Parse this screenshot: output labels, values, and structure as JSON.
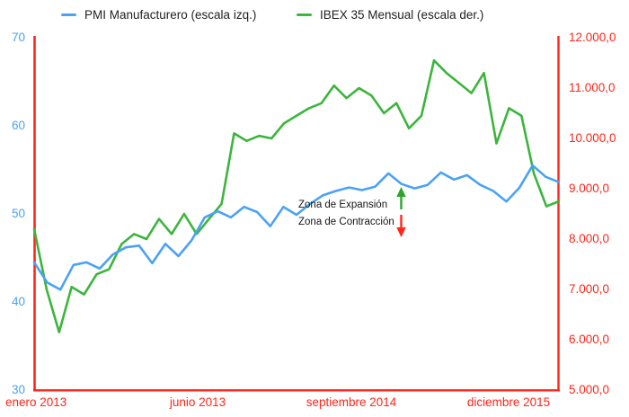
{
  "legend": {
    "items": [
      {
        "label": "PMI Manufacturero (escala izq.)",
        "color": "#4aa2f5"
      },
      {
        "label": "IBEX 35 Mensual (escala der.)",
        "color": "#3cb53c"
      }
    ]
  },
  "axes": {
    "left": {
      "ticks": [
        "70",
        "60",
        "50",
        "40",
        "30"
      ],
      "color": "#4aa2f5"
    },
    "right": {
      "ticks": [
        "12.000,0",
        "11.000,0",
        "10.000,0",
        "9.000,0",
        "8.000,0",
        "7.000,0",
        "6.000,0",
        "5.000,0"
      ],
      "color": "#ff2619"
    },
    "bottom": {
      "ticks": [
        "enero 2013",
        "junio 2013",
        "septiembre 2014",
        "diciembre 2015"
      ],
      "color": "#ff2619"
    }
  },
  "annotations": {
    "expansion": "Zona de Expansión",
    "contraction": "Zona de Contracción",
    "expansion_arrow_color": "#2ca52c",
    "contraction_arrow_color": "#ff2619"
  },
  "chart_data": {
    "type": "line",
    "title": "",
    "x_labels": [
      "enero 2013",
      "junio 2013",
      "septiembre 2014",
      "diciembre 2015"
    ],
    "ylim_left": [
      30,
      70
    ],
    "ylim_right": [
      5000,
      12000
    ],
    "grid": false,
    "legend_position": "top",
    "series": [
      {
        "id": "pmi",
        "name": "PMI Manufacturero",
        "axis": "left",
        "axis_range": [
          30,
          70
        ],
        "color": "#4aa2f5",
        "values": [
          44.5,
          42.2,
          41.4,
          44.2,
          44.5,
          43.8,
          45.4,
          46.2,
          46.4,
          44.4,
          46.6,
          45.2,
          47.0,
          49.6,
          50.3,
          49.6,
          50.8,
          50.2,
          48.6,
          50.8,
          49.9,
          51.1,
          52.1,
          52.6,
          53.0,
          52.7,
          53.1,
          54.6,
          53.4,
          52.9,
          53.3,
          54.7,
          53.9,
          54.4,
          53.3,
          52.6,
          51.4,
          53.0,
          55.5,
          54.2,
          53.6
        ]
      },
      {
        "id": "ibex",
        "name": "IBEX 35 Mensual",
        "axis": "right",
        "axis_range": [
          5000,
          12000
        ],
        "color": "#3cb53c",
        "values": [
          8200,
          7000,
          6150,
          7050,
          6900,
          7300,
          7400,
          7900,
          8100,
          8000,
          8400,
          8100,
          8500,
          8100,
          8400,
          8700,
          10100,
          9950,
          10050,
          10000,
          10300,
          10450,
          10600,
          10700,
          11050,
          10800,
          11000,
          10850,
          10500,
          10700,
          10200,
          10450,
          11550,
          11300,
          11100,
          10900,
          11300,
          9900,
          10600,
          10450,
          9300,
          8650,
          8750
        ]
      }
    ]
  }
}
